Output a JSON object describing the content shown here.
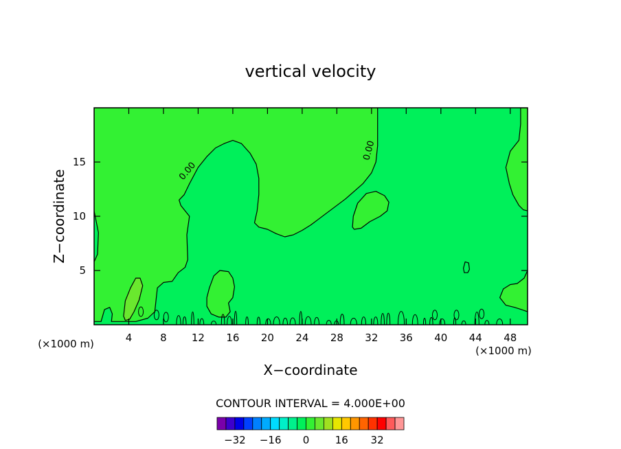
{
  "chart_data": {
    "type": "contour",
    "title": "vertical velocity",
    "xlabel": "X−coordinate",
    "ylabel": "Z−coordinate",
    "x_unit_left": "(×1000 m)",
    "x_unit_right": "(×1000 m)",
    "xlim": [
      0,
      50
    ],
    "ylim": [
      0,
      20
    ],
    "x_ticks": [
      4,
      8,
      12,
      16,
      20,
      24,
      28,
      32,
      36,
      40,
      44,
      48
    ],
    "x_tick_labels": [
      "4",
      "8",
      "12",
      "16",
      "20",
      "24",
      "28",
      "32",
      "36",
      "40",
      "44",
      "48"
    ],
    "y_ticks": [
      5,
      10,
      15
    ],
    "y_tick_labels": [
      "5",
      "10",
      "15"
    ],
    "contour_interval_text": "CONTOUR INTERVAL = 4.000E+00",
    "contour_labels": [
      {
        "text": "0.00",
        "x": 11.0,
        "y": 14.0,
        "angle": -50
      },
      {
        "text": "0.00",
        "x": 32.0,
        "y": 16.0,
        "angle": -75
      }
    ],
    "colors": {
      "positive_region": "#33f133",
      "zero_region": "#00f05a",
      "weak_updraft": "#6ae82e",
      "contour_line": "#000000"
    },
    "regions": {
      "upper_left_positive": [
        [
          0,
          20
        ],
        [
          0,
          10.5
        ],
        [
          0.5,
          8.5
        ],
        [
          0.4,
          6.5
        ],
        [
          0,
          5.8
        ],
        [
          0,
          0.3
        ],
        [
          0.8,
          0.3
        ],
        [
          1.2,
          1.4
        ],
        [
          1.8,
          1.6
        ],
        [
          2.1,
          1.0
        ],
        [
          2.0,
          0.3
        ],
        [
          4.8,
          0.3
        ],
        [
          6.2,
          0.6
        ],
        [
          7.0,
          1.2
        ],
        [
          7.3,
          3.4
        ],
        [
          8.0,
          3.9
        ],
        [
          9.0,
          4.0
        ],
        [
          9.7,
          4.8
        ],
        [
          10.5,
          5.3
        ],
        [
          10.8,
          6.0
        ],
        [
          10.7,
          8.3
        ],
        [
          11.0,
          10.0
        ],
        [
          10.0,
          11.0
        ],
        [
          9.8,
          11.5
        ],
        [
          10.4,
          12.0
        ],
        [
          11.0,
          13.0
        ],
        [
          12.0,
          14.5
        ],
        [
          13.0,
          15.5
        ],
        [
          14.0,
          16.3
        ],
        [
          15.0,
          16.7
        ],
        [
          16.0,
          17.0
        ],
        [
          17.0,
          16.7
        ],
        [
          18.0,
          15.8
        ],
        [
          18.7,
          14.8
        ],
        [
          19.0,
          13.5
        ],
        [
          19.0,
          12.0
        ],
        [
          18.8,
          10.5
        ],
        [
          18.5,
          9.4
        ],
        [
          19.0,
          9.0
        ],
        [
          20.0,
          8.8
        ],
        [
          21.0,
          8.4
        ],
        [
          22.0,
          8.1
        ],
        [
          23.0,
          8.3
        ],
        [
          24.0,
          8.7
        ],
        [
          25.0,
          9.2
        ],
        [
          26.0,
          9.8
        ],
        [
          27.0,
          10.4
        ],
        [
          28.0,
          11.0
        ],
        [
          29.0,
          11.6
        ],
        [
          30.0,
          12.3
        ],
        [
          31.0,
          13.0
        ],
        [
          32.0,
          14.0
        ],
        [
          32.5,
          15.0
        ],
        [
          32.7,
          16.5
        ],
        [
          32.7,
          20
        ]
      ],
      "upper_right_positive": [
        [
          49.2,
          20
        ],
        [
          49.2,
          18.5
        ],
        [
          49.0,
          17.0
        ],
        [
          48.0,
          16.0
        ],
        [
          47.5,
          14.5
        ],
        [
          47.9,
          13.0
        ],
        [
          48.3,
          12.0
        ],
        [
          49.0,
          11.0
        ],
        [
          49.5,
          10.6
        ],
        [
          50,
          10.5
        ],
        [
          50,
          20
        ]
      ],
      "lower_right_positive": [
        [
          50,
          5.0
        ],
        [
          49.6,
          4.3
        ],
        [
          48.8,
          3.8
        ],
        [
          48.0,
          3.7
        ],
        [
          47.2,
          3.3
        ],
        [
          46.8,
          2.5
        ],
        [
          47.5,
          1.8
        ],
        [
          48.5,
          1.6
        ],
        [
          49.3,
          1.4
        ],
        [
          50,
          1.2
        ]
      ],
      "right_bubble": [
        [
          29.8,
          9.0
        ],
        [
          29.9,
          10.0
        ],
        [
          30.4,
          11.2
        ],
        [
          31.4,
          12.1
        ],
        [
          32.5,
          12.3
        ],
        [
          33.5,
          11.9
        ],
        [
          34.0,
          11.3
        ],
        [
          33.8,
          10.5
        ],
        [
          33.0,
          10.0
        ],
        [
          31.8,
          9.5
        ],
        [
          30.8,
          8.9
        ],
        [
          30.0,
          8.8
        ]
      ],
      "center_bubble": [
        [
          13.5,
          1.0
        ],
        [
          13.0,
          1.7
        ],
        [
          13.0,
          2.5
        ],
        [
          13.3,
          3.4
        ],
        [
          13.8,
          4.5
        ],
        [
          14.5,
          5.0
        ],
        [
          15.5,
          4.9
        ],
        [
          16.0,
          4.3
        ],
        [
          16.2,
          3.5
        ],
        [
          16.0,
          2.5
        ],
        [
          15.5,
          2.0
        ],
        [
          15.7,
          1.2
        ],
        [
          15.2,
          0.7
        ],
        [
          14.4,
          0.7
        ]
      ],
      "updraft_core": [
        [
          3.4,
          0.8
        ],
        [
          3.6,
          2.2
        ],
        [
          4.2,
          3.4
        ],
        [
          4.8,
          4.3
        ],
        [
          5.3,
          4.3
        ],
        [
          5.6,
          3.6
        ],
        [
          5.2,
          2.3
        ],
        [
          4.6,
          1.2
        ],
        [
          4.1,
          0.5
        ],
        [
          3.6,
          0.4
        ]
      ],
      "small_cell": [
        [
          42.6,
          5.2
        ],
        [
          42.8,
          5.8
        ],
        [
          43.2,
          5.7
        ],
        [
          43.3,
          5.1
        ],
        [
          43.1,
          4.8
        ],
        [
          42.7,
          4.8
        ]
      ]
    },
    "colorbar": {
      "colors": [
        "#7a00aa",
        "#3d00cc",
        "#0000e6",
        "#0040ff",
        "#0080ff",
        "#00aaff",
        "#00dcff",
        "#00f0c8",
        "#00f08c",
        "#00f05a",
        "#33f133",
        "#6ae82e",
        "#a0e020",
        "#e6e600",
        "#ffc800",
        "#ff9600",
        "#ff6400",
        "#ff3200",
        "#ff0000",
        "#ff5a5a",
        "#ff9696"
      ],
      "tick_labels": [
        "−32",
        "−16",
        "0",
        "16",
        "32"
      ],
      "tick_values": [
        -32,
        -16,
        0,
        16,
        32
      ],
      "range": [
        -40,
        44
      ]
    }
  }
}
